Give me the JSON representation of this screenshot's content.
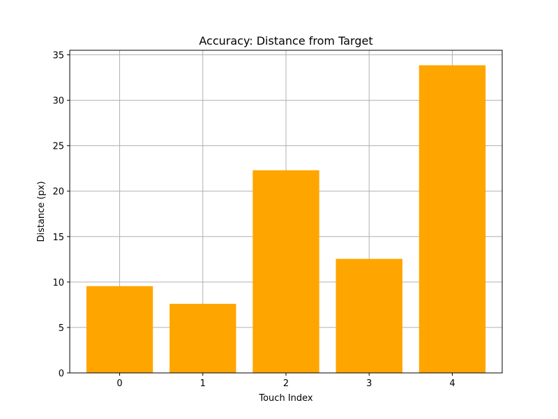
{
  "chart_data": {
    "type": "bar",
    "title": "Accuracy: Distance from Target",
    "xlabel": "Touch Index",
    "ylabel": "Distance (px)",
    "categories": [
      "0",
      "1",
      "2",
      "3",
      "4"
    ],
    "values": [
      9.55,
      7.6,
      22.3,
      12.55,
      33.85
    ],
    "ylim": [
      0,
      35.5
    ],
    "yticks": [
      0,
      5,
      10,
      15,
      20,
      25,
      30,
      35
    ],
    "grid": true,
    "bar_color": "#ffa500"
  }
}
